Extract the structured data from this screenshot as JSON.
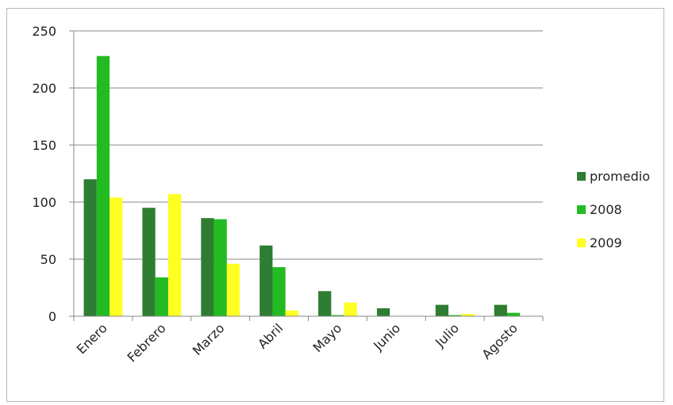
{
  "chart_data": {
    "type": "bar",
    "title": "",
    "xlabel": "",
    "ylabel": "",
    "ylim": [
      0,
      250
    ],
    "yticks": [
      "0",
      "50",
      "100",
      "150",
      "200",
      "250"
    ],
    "categories": [
      "Enero",
      "Febrero",
      "Marzo",
      "Abril",
      "Mayo",
      "Junio",
      "Julio",
      "Agosto"
    ],
    "series": [
      {
        "name": "promedio",
        "color": "#2e7d32",
        "values": [
          120,
          95,
          86,
          62,
          22,
          7,
          10,
          10
        ]
      },
      {
        "name": "2008",
        "color": "#22bb22",
        "values": [
          228,
          34,
          85,
          43,
          1,
          0,
          1,
          3
        ]
      },
      {
        "name": "2009",
        "color": "#ffff22",
        "values": [
          104,
          107,
          46,
          5,
          12,
          0,
          2,
          0
        ]
      }
    ],
    "grid": true,
    "legend": "right"
  }
}
